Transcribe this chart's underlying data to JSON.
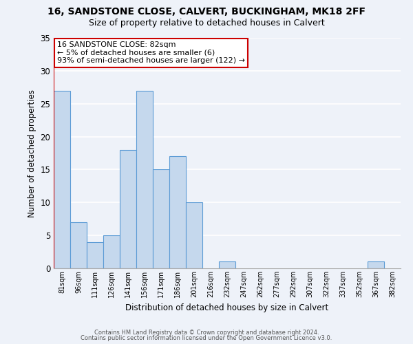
{
  "title": "16, SANDSTONE CLOSE, CALVERT, BUCKINGHAM, MK18 2FF",
  "subtitle": "Size of property relative to detached houses in Calvert",
  "xlabel": "Distribution of detached houses by size in Calvert",
  "ylabel": "Number of detached properties",
  "bar_labels": [
    "81sqm",
    "96sqm",
    "111sqm",
    "126sqm",
    "141sqm",
    "156sqm",
    "171sqm",
    "186sqm",
    "201sqm",
    "216sqm",
    "232sqm",
    "247sqm",
    "262sqm",
    "277sqm",
    "292sqm",
    "307sqm",
    "322sqm",
    "337sqm",
    "352sqm",
    "367sqm",
    "382sqm"
  ],
  "bar_heights": [
    27,
    7,
    4,
    5,
    18,
    27,
    15,
    17,
    10,
    0,
    1,
    0,
    0,
    0,
    0,
    0,
    0,
    0,
    0,
    1,
    0
  ],
  "bar_color": "#c5d8ed",
  "bar_edge_color": "#5b9bd5",
  "ylim": [
    0,
    35
  ],
  "yticks": [
    0,
    5,
    10,
    15,
    20,
    25,
    30,
    35
  ],
  "annotation_line1": "16 SANDSTONE CLOSE: 82sqm",
  "annotation_line2": "← 5% of detached houses are smaller (6)",
  "annotation_line3": "93% of semi-detached houses are larger (122) →",
  "annotation_box_color": "#ffffff",
  "annotation_box_edge_color": "#cc0000",
  "footer_line1": "Contains HM Land Registry data © Crown copyright and database right 2024.",
  "footer_line2": "Contains public sector information licensed under the Open Government Licence v3.0.",
  "background_color": "#eef2f9",
  "grid_color": "#ffffff",
  "title_fontsize": 10,
  "subtitle_fontsize": 9
}
